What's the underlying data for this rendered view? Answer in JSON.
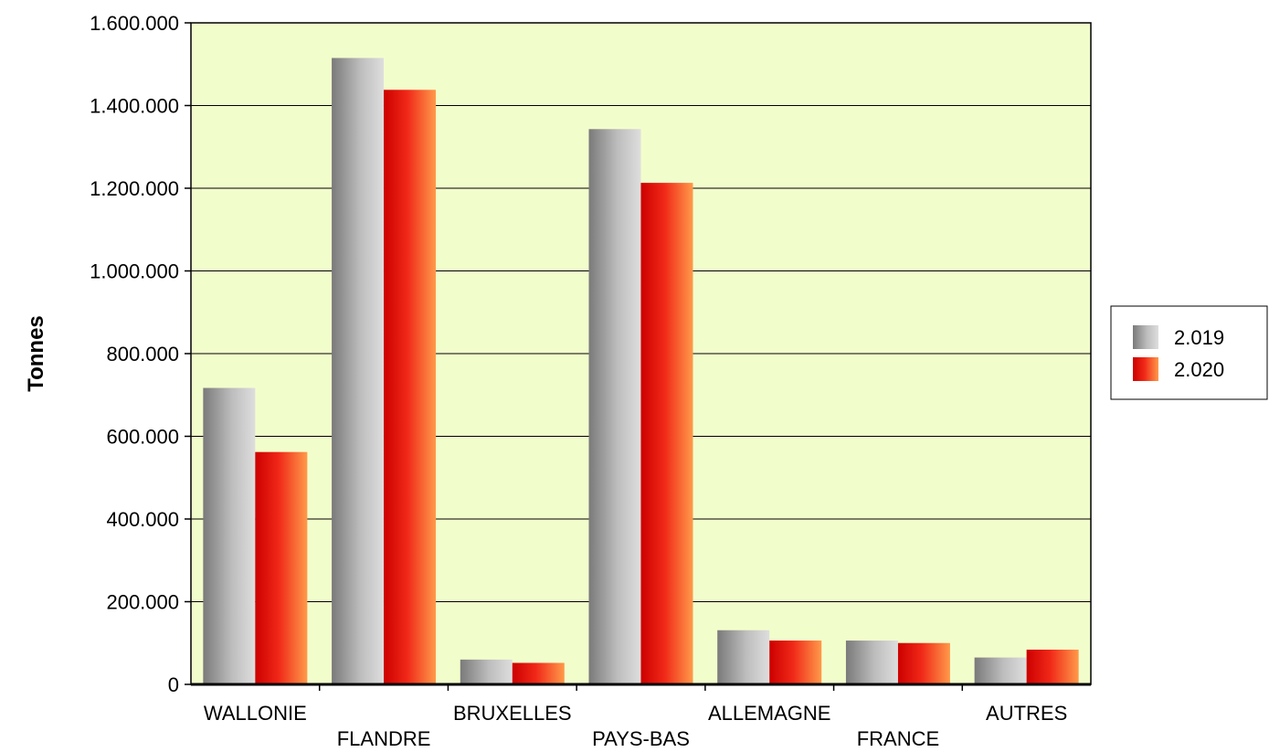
{
  "chart_data": {
    "type": "bar",
    "ylabel": "Tonnes",
    "xlabel": "",
    "title": "",
    "ylim": [
      0,
      1600000
    ],
    "y_ticks": [
      0,
      200000,
      400000,
      600000,
      800000,
      1000000,
      1200000,
      1400000,
      1600000
    ],
    "y_tick_labels": [
      "0",
      "200.000",
      "400.000",
      "600.000",
      "800.000",
      "1.000.000",
      "1.200.000",
      "1.400.000",
      "1.600.000"
    ],
    "grid": true,
    "background_color": "#F2FDCC",
    "legend_position": "right",
    "categories": [
      "WALLONIE",
      "FLANDRE",
      "BRUXELLES",
      "PAYS-BAS",
      "ALLEMAGNE",
      "FRANCE",
      "AUTRES"
    ],
    "series": [
      {
        "name": "2.019",
        "color": "#A0A0A0",
        "values": [
          717000,
          1515000,
          60000,
          1343000,
          131000,
          106000,
          65000
        ]
      },
      {
        "name": "2.020",
        "color": "#F03010",
        "values": [
          562000,
          1438000,
          52000,
          1213000,
          106000,
          100000,
          84000
        ]
      }
    ]
  }
}
